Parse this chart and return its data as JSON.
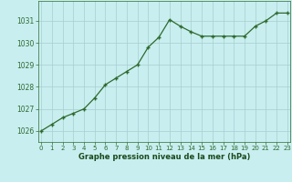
{
  "x": [
    0,
    1,
    2,
    3,
    4,
    5,
    6,
    7,
    8,
    9,
    10,
    11,
    12,
    13,
    14,
    15,
    16,
    17,
    18,
    19,
    20,
    21,
    22,
    23
  ],
  "y": [
    1026.0,
    1026.3,
    1026.6,
    1026.8,
    1027.0,
    1027.5,
    1028.1,
    1028.4,
    1028.7,
    1029.0,
    1029.8,
    1030.25,
    1031.05,
    1030.75,
    1030.5,
    1030.3,
    1030.3,
    1030.3,
    1030.3,
    1030.3,
    1030.75,
    1031.0,
    1031.35,
    1031.35
  ],
  "line_color": "#2d6a2d",
  "marker": "+",
  "bg_color": "#c8eef0",
  "grid_color": "#a8cece",
  "xlabel": "Graphe pression niveau de la mer (hPa)",
  "xlabel_color": "#1a4a1a",
  "tick_color": "#2d6a2d",
  "ylim": [
    1025.5,
    1031.9
  ],
  "yticks": [
    1026,
    1027,
    1028,
    1029,
    1030,
    1031
  ],
  "xticks": [
    0,
    1,
    2,
    3,
    4,
    5,
    6,
    7,
    8,
    9,
    10,
    11,
    12,
    13,
    14,
    15,
    16,
    17,
    18,
    19,
    20,
    21,
    22,
    23
  ]
}
